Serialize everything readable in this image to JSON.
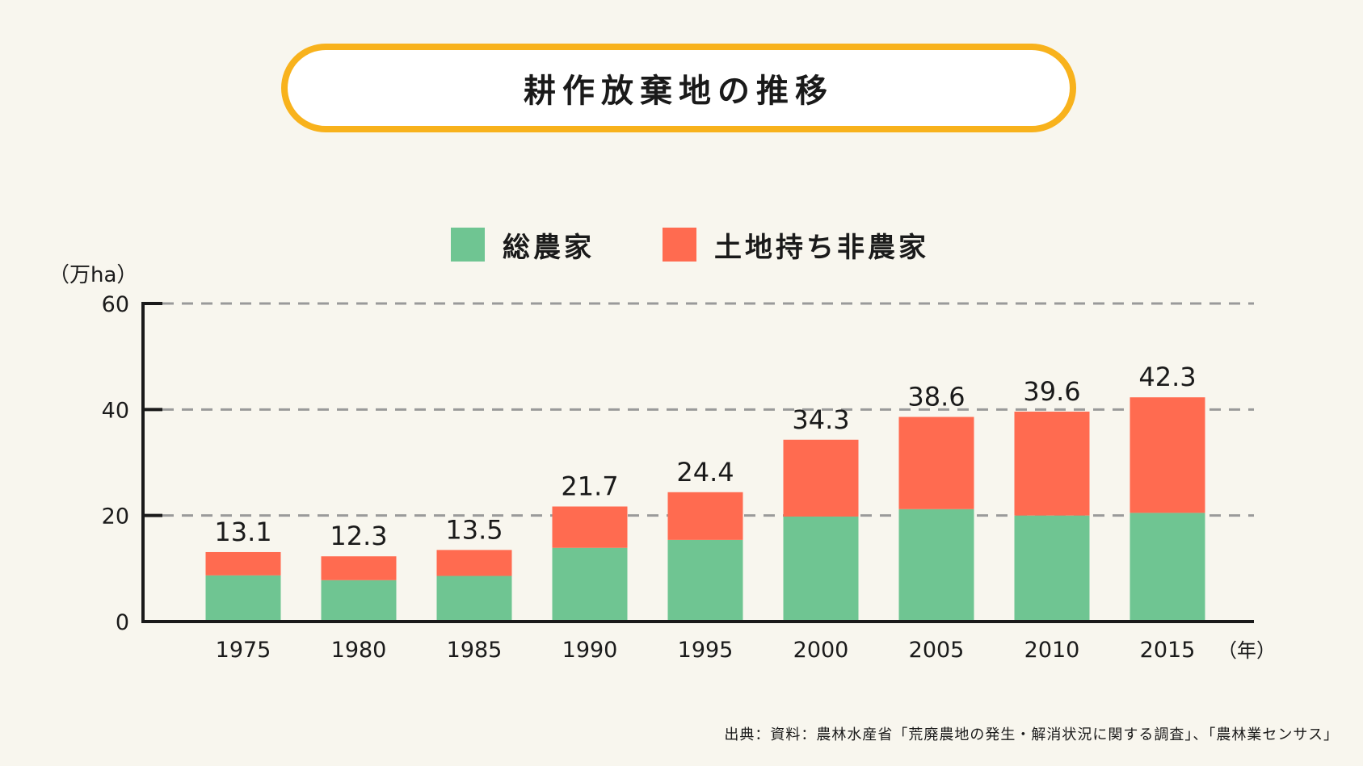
{
  "title": "耕作放棄地の推移",
  "legend": {
    "farm_label": "総農家",
    "nonfarm_label": "土地持ち非農家"
  },
  "unit": "（万ha）",
  "x_unit": "（年）",
  "source": "出典：資料：農林水産省「荒廃農地の発生・解消状況に関する調査」、「農林業センサス」",
  "colors": {
    "farm": "#6fc592",
    "nonfarm": "#ff6b50",
    "title_border": "#f8b21c",
    "background": "#f8f6ee"
  },
  "chart_data": {
    "type": "bar",
    "stacked": true,
    "categories": [
      "1975",
      "1980",
      "1985",
      "1990",
      "1995",
      "2000",
      "2005",
      "2010",
      "2015"
    ],
    "series": [
      {
        "name": "総農家",
        "values": [
          8.7,
          7.8,
          8.6,
          13.9,
          15.4,
          19.8,
          21.2,
          20.0,
          20.5
        ]
      },
      {
        "name": "土地持ち非農家",
        "values": [
          4.4,
          4.5,
          4.9,
          7.8,
          9.0,
          14.5,
          17.4,
          19.6,
          21.8
        ]
      }
    ],
    "totals": [
      "13.1",
      "12.3",
      "13.5",
      "21.7",
      "24.4",
      "34.3",
      "38.6",
      "39.6",
      "42.3"
    ],
    "yticks": [
      0,
      20,
      40,
      60
    ],
    "ylim": [
      0,
      60
    ],
    "grid": "dashed horizontal at 20, 40, 60"
  }
}
